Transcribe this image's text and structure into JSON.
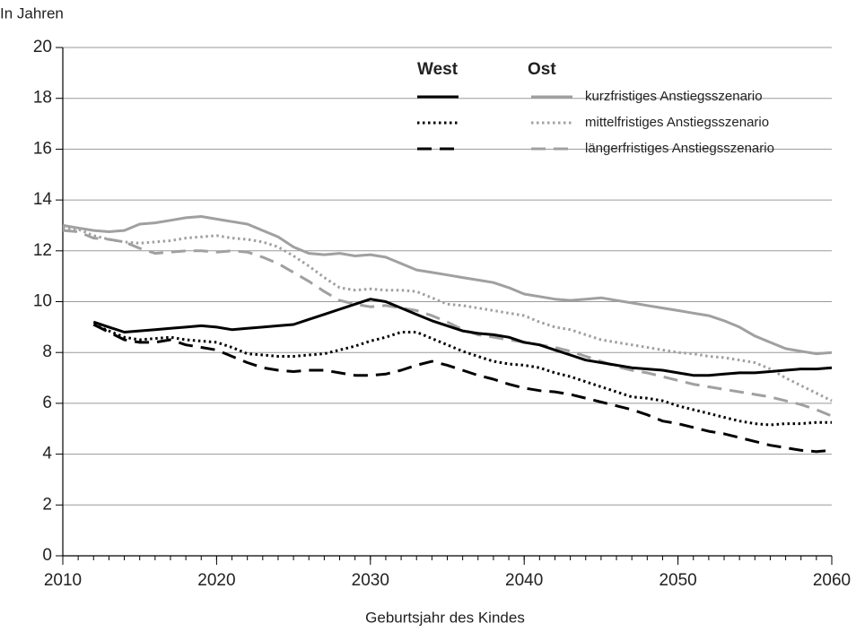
{
  "chart_data": {
    "type": "line",
    "y_label": "In Jahren",
    "x_label": "Geburtsjahr des Kindes",
    "x": [
      2010,
      2011,
      2012,
      2013,
      2014,
      2015,
      2016,
      2017,
      2018,
      2019,
      2020,
      2021,
      2022,
      2023,
      2024,
      2025,
      2026,
      2027,
      2028,
      2029,
      2030,
      2031,
      2032,
      2033,
      2034,
      2035,
      2036,
      2037,
      2038,
      2039,
      2040,
      2041,
      2042,
      2043,
      2044,
      2045,
      2046,
      2047,
      2048,
      2049,
      2050,
      2051,
      2052,
      2053,
      2054,
      2055,
      2056,
      2057,
      2058,
      2059,
      2060
    ],
    "legend": {
      "titles": [
        "West",
        "Ost"
      ],
      "labels": [
        "kurzfristiges Anstiegsszenario",
        "mittelfristiges Anstiegsszenario",
        "längerfristiges Anstiegsszenario"
      ]
    },
    "series": [
      {
        "color": "#000000",
        "style": "solid",
        "values": [
          null,
          null,
          9.2,
          9.0,
          8.8,
          8.85,
          8.9,
          8.95,
          9.0,
          9.05,
          9.0,
          8.9,
          8.95,
          9.0,
          9.05,
          9.1,
          9.3,
          9.5,
          9.7,
          9.9,
          10.1,
          10.0,
          9.75,
          9.5,
          9.25,
          9.05,
          8.85,
          8.75,
          8.7,
          8.6,
          8.4,
          8.3,
          8.1,
          7.9,
          7.7,
          7.6,
          7.5,
          7.4,
          7.35,
          7.3,
          7.2,
          7.1,
          7.1,
          7.15,
          7.2,
          7.2,
          7.25,
          7.3,
          7.35,
          7.35,
          7.4
        ]
      },
      {
        "color": "#000000",
        "style": "dotted",
        "values": [
          null,
          null,
          9.1,
          8.85,
          8.6,
          8.5,
          8.55,
          8.6,
          8.5,
          8.45,
          8.4,
          8.2,
          7.95,
          7.9,
          7.85,
          7.85,
          7.9,
          7.95,
          8.1,
          8.25,
          8.45,
          8.6,
          8.8,
          8.8,
          8.55,
          8.3,
          8.05,
          7.85,
          7.65,
          7.55,
          7.5,
          7.4,
          7.2,
          7.05,
          6.85,
          6.65,
          6.45,
          6.25,
          6.2,
          6.1,
          5.9,
          5.75,
          5.6,
          5.45,
          5.3,
          5.2,
          5.15,
          5.2,
          5.2,
          5.25,
          5.25
        ]
      },
      {
        "color": "#000000",
        "style": "dashed",
        "values": [
          null,
          null,
          9.1,
          8.8,
          8.5,
          8.4,
          8.4,
          8.5,
          8.3,
          8.2,
          8.1,
          7.85,
          7.6,
          7.4,
          7.3,
          7.25,
          7.3,
          7.3,
          7.2,
          7.1,
          7.1,
          7.15,
          7.3,
          7.5,
          7.65,
          7.5,
          7.3,
          7.1,
          6.95,
          6.75,
          6.6,
          6.5,
          6.45,
          6.35,
          6.2,
          6.05,
          5.9,
          5.75,
          5.55,
          5.3,
          5.2,
          5.05,
          4.9,
          4.8,
          4.65,
          4.5,
          4.35,
          4.25,
          4.15,
          4.1,
          4.15
        ]
      },
      {
        "color": "#a0a0a0",
        "style": "solid",
        "values": [
          13.0,
          12.9,
          12.8,
          12.75,
          12.8,
          13.05,
          13.1,
          13.2,
          13.3,
          13.35,
          13.25,
          13.15,
          13.05,
          12.8,
          12.55,
          12.15,
          11.9,
          11.85,
          11.9,
          11.8,
          11.85,
          11.75,
          11.5,
          11.25,
          11.15,
          11.05,
          10.95,
          10.85,
          10.75,
          10.55,
          10.3,
          10.2,
          10.1,
          10.05,
          10.1,
          10.15,
          10.05,
          9.95,
          9.85,
          9.75,
          9.65,
          9.55,
          9.45,
          9.25,
          9.0,
          8.65,
          8.4,
          8.15,
          8.05,
          7.95,
          8.0
        ]
      },
      {
        "color": "#a0a0a0",
        "style": "dotted",
        "values": [
          12.9,
          12.85,
          12.6,
          12.45,
          12.35,
          12.3,
          12.35,
          12.4,
          12.5,
          12.55,
          12.6,
          12.5,
          12.45,
          12.35,
          12.15,
          11.8,
          11.4,
          10.95,
          10.55,
          10.45,
          10.5,
          10.45,
          10.45,
          10.4,
          10.15,
          9.9,
          9.85,
          9.75,
          9.65,
          9.55,
          9.45,
          9.2,
          9.0,
          8.9,
          8.7,
          8.5,
          8.4,
          8.3,
          8.2,
          8.1,
          8.0,
          7.95,
          7.85,
          7.8,
          7.7,
          7.6,
          7.35,
          7.0,
          6.7,
          6.4,
          6.1
        ]
      },
      {
        "color": "#a0a0a0",
        "style": "dashed",
        "values": [
          12.8,
          12.75,
          12.5,
          12.45,
          12.35,
          12.1,
          11.9,
          11.95,
          12.0,
          12.0,
          11.95,
          12.0,
          11.95,
          11.75,
          11.5,
          11.15,
          10.8,
          10.4,
          10.05,
          9.9,
          9.8,
          9.85,
          9.75,
          9.65,
          9.45,
          9.2,
          8.9,
          8.7,
          8.6,
          8.5,
          8.4,
          8.3,
          8.2,
          8.05,
          7.85,
          7.65,
          7.45,
          7.3,
          7.2,
          7.05,
          6.9,
          6.75,
          6.65,
          6.55,
          6.45,
          6.35,
          6.25,
          6.1,
          5.95,
          5.75,
          5.5
        ]
      }
    ],
    "xlim": [
      2010,
      2060
    ],
    "xticks": [
      2010,
      2020,
      2030,
      2040,
      2050,
      2060
    ],
    "ylim": [
      0,
      20
    ],
    "yticks": [
      0,
      2,
      4,
      6,
      8,
      10,
      12,
      14,
      16,
      18,
      20
    ],
    "grid": true
  }
}
